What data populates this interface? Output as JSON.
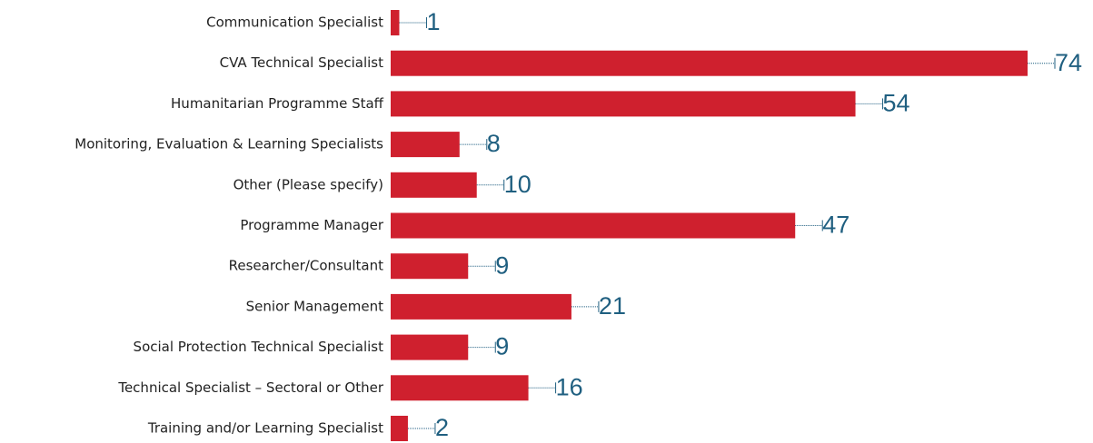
{
  "chart_data": {
    "type": "bar",
    "orientation": "horizontal",
    "color": "#cf202e",
    "label_color": "#1f5f80",
    "categories": [
      "Communication Specialist",
      "CVA Technical Specialist",
      "Humanitarian Programme Staff",
      "Monitoring, Evaluation & Learning Specialists",
      "Other (Please specify)",
      "Programme Manager",
      "Researcher/Consultant",
      "Senior Management",
      "Social Protection Technical Specialist",
      "Technical Specialist – Sectoral or Other",
      "Training and/or Learning Specialist"
    ],
    "values": [
      1,
      74,
      54,
      8,
      10,
      47,
      9,
      21,
      9,
      16,
      2
    ]
  }
}
